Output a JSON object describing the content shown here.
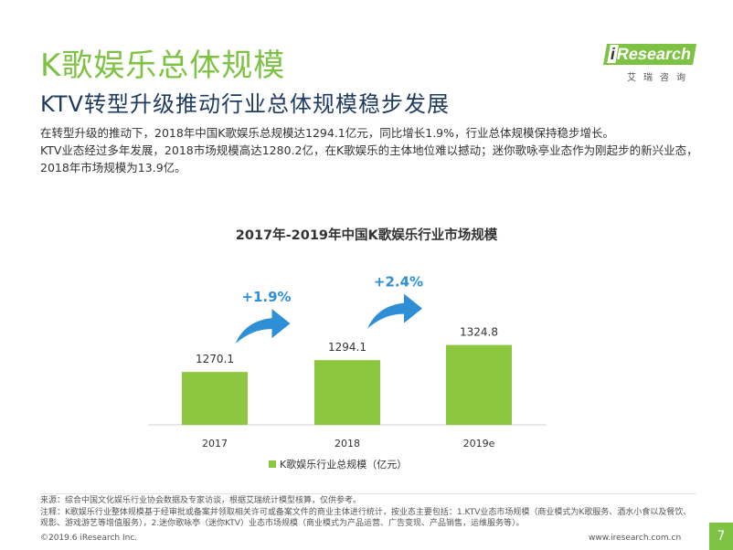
{
  "header": {
    "title": "K歌娱乐总体规模",
    "subtitle": "KTV转型升级推动行业总体规模稳步发展"
  },
  "logo": {
    "brand_i": "i",
    "brand_rest": "Research",
    "brand_cn": "艾瑞咨询"
  },
  "intro": {
    "line1": "在转型升级的推动下，2018年中国K歌娱乐总规模达1294.1亿元，同比增长1.9%，行业总体规模保持稳步增长。",
    "line2": "KTV业态经过多年发展，2018市场规模高达1280.2亿，在K歌娱乐的主体地位难以撼动；迷你歌咏亭业态作为刚起步的新兴业态，2018年市场规模为13.9亿。"
  },
  "chart_data": {
    "type": "bar",
    "title": "2017年-2019年中国K歌娱乐行业市场规模",
    "categories": [
      "2017",
      "2018",
      "2019e"
    ],
    "series": [
      {
        "name": "K歌娱乐行业总规模（亿元）",
        "values": [
          1270.1,
          1294.1,
          1324.8
        ]
      }
    ],
    "value_labels": [
      "1270.1",
      "1294.1",
      "1324.8"
    ],
    "growth_annotations": [
      "+1.9%",
      "+2.4%"
    ],
    "legend_position": "bottom",
    "grid": false,
    "colors": {
      "bar": "#8dc63f",
      "arrow": "#2e8fd6",
      "annotation": "#2e8fd6"
    }
  },
  "notes": {
    "source": "来源：综合中国文化娱乐行业协会数据及专家访谈，根据艾瑞统计模型核算，仅供参考。",
    "note1": "注释：K歌娱乐行业整体规模基于经审批或备案并领取相关许可或备案文件的商业主体进行统计，按业态主要包括：1.KTV业态市场规模（商业模式为K歌服务、酒水小食以及餐饮、",
    "note2": "观影、游戏游艺等增值服务），2.迷你歌咏亭（迷你KTV）业态市场规模（商业模式为产品运营、广告变现、产品销售，运维服务等）。"
  },
  "footer": {
    "copyright": "©2019.6 iResearch Inc.",
    "website": "www.iresearch.com.cn",
    "page_number": "7"
  }
}
